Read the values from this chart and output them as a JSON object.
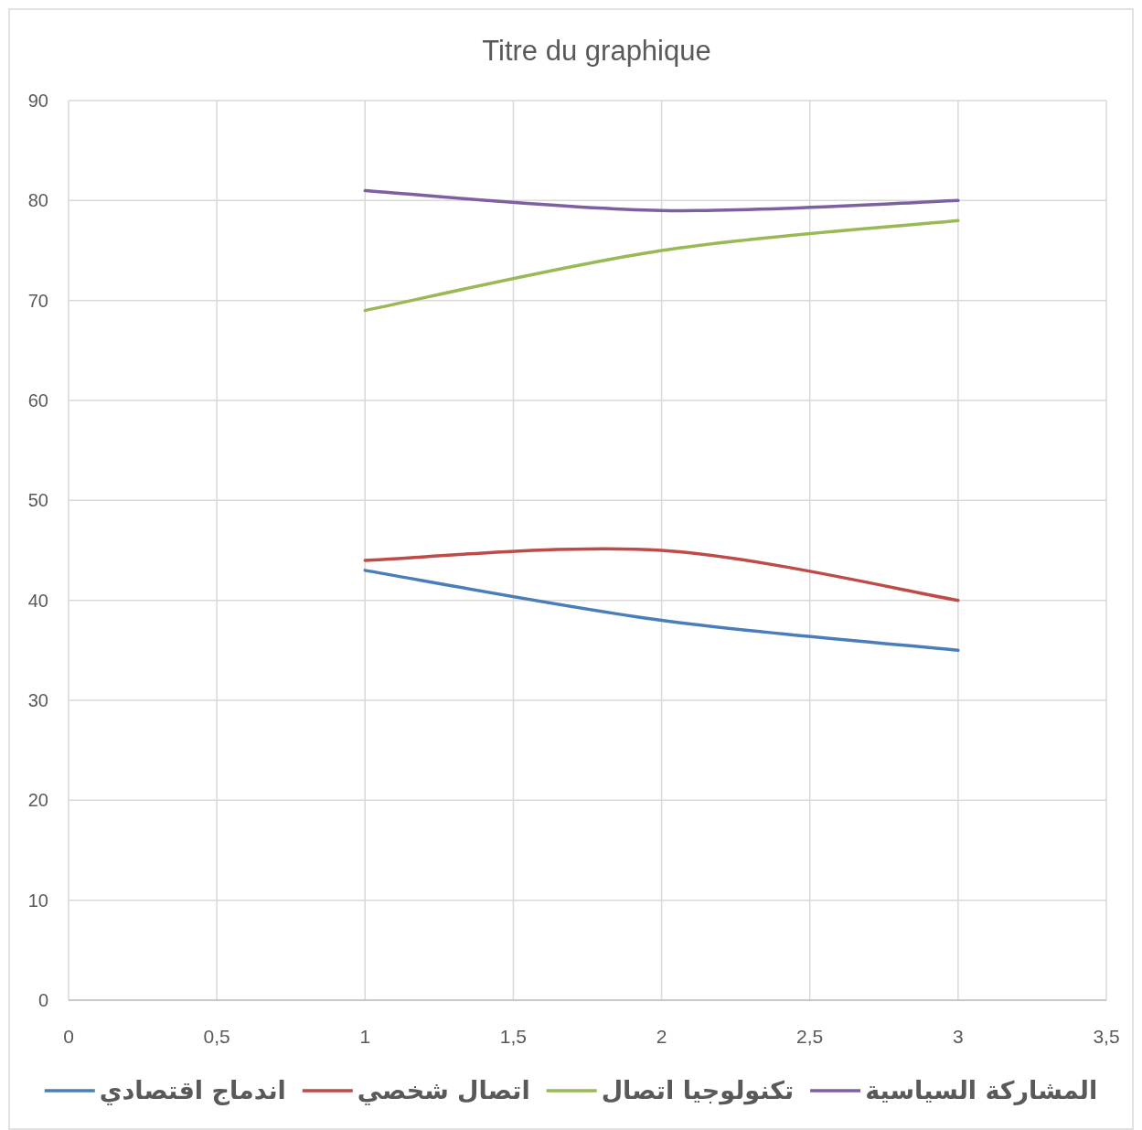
{
  "chart_data": {
    "type": "line",
    "title": "Titre du graphique",
    "x": [
      1,
      2,
      3
    ],
    "series": [
      {
        "name": "اندماج اقتصادي",
        "color": "#4a7ebb",
        "values": [
          43,
          38,
          35
        ]
      },
      {
        "name": "اتصال شخصي",
        "color": "#be4b48",
        "values": [
          44,
          45,
          40
        ]
      },
      {
        "name": "تكنولوجيا اتصال",
        "color": "#98b954",
        "values": [
          69,
          75,
          78
        ]
      },
      {
        "name": "المشاركة السياسية",
        "color": "#7d60a0",
        "values": [
          81,
          79,
          80
        ]
      }
    ],
    "xlim": [
      0,
      3.5
    ],
    "xticks": [
      0,
      {
        "value": 0.5,
        "label": "0,5"
      },
      1,
      {
        "value": 1.5,
        "label": "1,5"
      },
      2,
      {
        "value": 2.5,
        "label": "2,5"
      },
      3,
      {
        "value": 3.5,
        "label": "3,5"
      }
    ],
    "ylim": [
      0,
      90
    ],
    "yticks": [
      0,
      10,
      20,
      30,
      40,
      50,
      60,
      70,
      80,
      90
    ],
    "grid": true,
    "legend": "bottom",
    "marker": "none",
    "line_style": "solid"
  }
}
